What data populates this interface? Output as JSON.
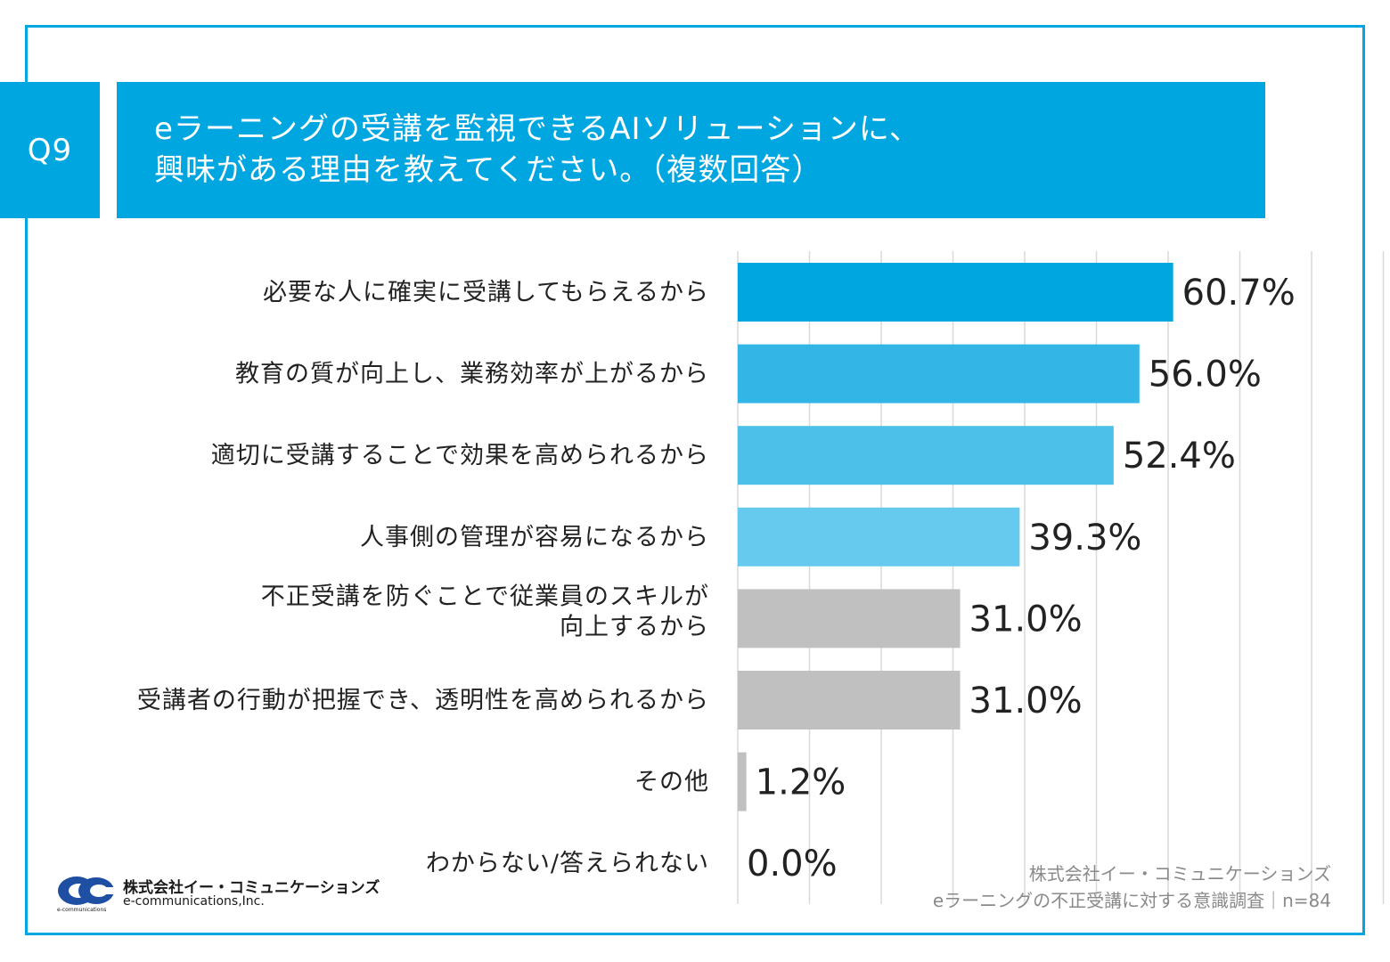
{
  "header": {
    "question_number": "Q9",
    "title_line1": "eラーニングの受講を監視できるAIソリューションに、",
    "title_line2": "興味がある理由を教えてください。（複数回答）"
  },
  "colors": {
    "accent": "#00a6e0",
    "bar_shades": [
      "#00a6e0",
      "#33b5e6",
      "#4dc0ea",
      "#66c9ee"
    ],
    "bar_gray": "#c0c0c0",
    "grid": "#d9d9d9"
  },
  "chart_data": {
    "type": "bar",
    "orientation": "horizontal",
    "title": "eラーニングの受講を監視できるAIソリューションに、興味がある理由を教えてください。（複数回答）",
    "categories": [
      [
        "必要な人に確実に受講してもらえるから"
      ],
      [
        "教育の質が向上し、業務効率が上がるから"
      ],
      [
        "適切に受講することで効果を高められるから"
      ],
      [
        "人事側の管理が容易になるから"
      ],
      [
        "不正受講を防ぐことで従業員のスキルが",
        "向上するから"
      ],
      [
        "受講者の行動が把握でき、透明性を高められるから"
      ],
      [
        "その他"
      ],
      [
        "わからない/答えられない"
      ]
    ],
    "values": [
      60.7,
      56.0,
      52.4,
      39.3,
      31.0,
      31.0,
      1.2,
      0.0
    ],
    "value_labels": [
      "60.7%",
      "56.0%",
      "52.4%",
      "39.3%",
      "31.0%",
      "31.0%",
      "1.2%",
      "0.0%"
    ],
    "unit": "%",
    "xlim": [
      0,
      100
    ],
    "grid_step": 10,
    "grid": true
  },
  "source": {
    "company": "株式会社イー・コミュニケーションズ",
    "survey": "eラーニングの不正受講に対する意識調査｜n=84"
  },
  "logo": {
    "company_jp": "株式会社イー・コミュニケーションズ",
    "company_en": "e-communications,Inc.",
    "tagline": "e-communications"
  }
}
